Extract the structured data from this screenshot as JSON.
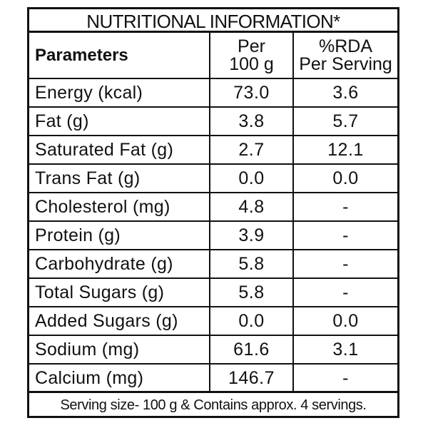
{
  "title": "NUTRITIONAL INFORMATION*",
  "headers": {
    "parameters": "Parameters",
    "per_line1": "Per",
    "per_line2": "100 g",
    "rda_line1": "%RDA",
    "rda_line2": "Per Serving"
  },
  "rows": [
    {
      "name": "Energy (kcal)",
      "per100g": "73.0",
      "rda": "3.6"
    },
    {
      "name": "Fat (g)",
      "per100g": "3.8",
      "rda": "5.7"
    },
    {
      "name": "Saturated Fat (g)",
      "per100g": "2.7",
      "rda": "12.1"
    },
    {
      "name": "Trans Fat (g)",
      "per100g": "0.0",
      "rda": "0.0"
    },
    {
      "name": "Cholesterol (mg)",
      "per100g": "4.8",
      "rda": "-"
    },
    {
      "name": "Protein (g)",
      "per100g": "3.9",
      "rda": "-"
    },
    {
      "name": "Carbohydrate (g)",
      "per100g": "5.8",
      "rda": "-"
    },
    {
      "name": "Total Sugars (g)",
      "per100g": "5.8",
      "rda": "-"
    },
    {
      "name": "Added Sugars (g)",
      "per100g": "0.0",
      "rda": "0.0"
    },
    {
      "name": "Sodium (mg)",
      "per100g": "61.6",
      "rda": "3.1"
    },
    {
      "name": "Calcium (mg)",
      "per100g": "146.7",
      "rda": "-"
    }
  ],
  "footer": "Serving size- 100 g & Contains approx. 4 servings."
}
